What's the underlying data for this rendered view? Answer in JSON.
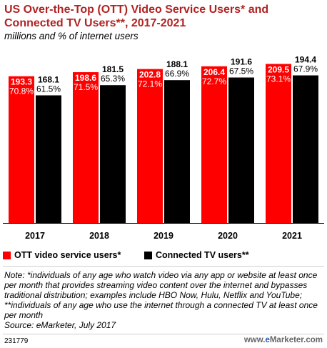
{
  "header": {
    "title": "US Over-the-Top (OTT) Video Service Users* and Connected TV Users**, 2017-2021",
    "subtitle": "millions and % of internet users"
  },
  "chart_data": {
    "type": "bar",
    "categories": [
      "2017",
      "2018",
      "2019",
      "2020",
      "2021"
    ],
    "series": [
      {
        "name": "OTT video service users*",
        "color": "#ff0000",
        "values": [
          193.3,
          198.6,
          202.8,
          206.4,
          209.5
        ],
        "value_labels": [
          "193.3",
          "198.6",
          "202.8",
          "206.4",
          "209.5"
        ],
        "pct_labels": [
          "70.8%",
          "71.5%",
          "72.1%",
          "72.7%",
          "73.1%"
        ]
      },
      {
        "name": "Connected TV users**",
        "color": "#000000",
        "values": [
          168.1,
          181.5,
          188.1,
          191.6,
          194.4
        ],
        "value_labels": [
          "168.1",
          "181.5",
          "188.1",
          "191.6",
          "194.4"
        ],
        "pct_labels": [
          "61.5%",
          "65.3%",
          "66.9%",
          "67.5%",
          "67.9%"
        ]
      }
    ],
    "ylim": [
      0,
      225
    ],
    "grid": false,
    "legend": "bottom-left"
  },
  "legend": {
    "ott_label": "OTT video service users*",
    "ctv_label": "Connected TV users**"
  },
  "note": "Note: *individuals of any age who watch video via any app or website at least once per month that provides streaming video content over the internet and bypasses traditional distribution; examples include HBO Now, Hulu, Netflix and YouTube; **individuals of any age who use the internet through a connected TV at least once per month",
  "source": "Source: eMarketer, July 2017",
  "footer": {
    "id": "231779",
    "brand_prefix": "www.",
    "brand_e": "e",
    "brand_suffix": "Marketer.com"
  }
}
